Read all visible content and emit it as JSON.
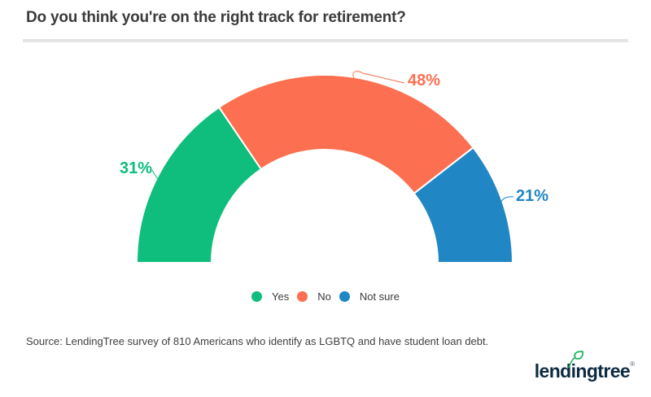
{
  "title": "Do you think you're on the right track for retirement?",
  "source": "Source: LendingTree survey of 810 Americans who identify as LGBTQ and have student loan debt.",
  "logo": {
    "text": "lendingtree",
    "registered": "®"
  },
  "colors": {
    "yes_green": "#0fbe7c",
    "no_orange": "#fc6f50",
    "not_sure_blue": "#2186c4",
    "title_text": "#3b3b3b",
    "divider": "#e5e5e5",
    "logo_navy": "#0d2b40",
    "leaf_green": "#1fb25c"
  },
  "legend": [
    {
      "label": "Yes",
      "color": "#0fbe7c"
    },
    {
      "label": "No",
      "color": "#fc6f50"
    },
    {
      "label": "Not sure",
      "color": "#2186c4"
    }
  ],
  "chart_data": {
    "type": "pie",
    "subtype": "half-donut",
    "title": "Do you think you're on the right track for retirement?",
    "categories": [
      "Yes",
      "No",
      "Not sure"
    ],
    "values": [
      31,
      48,
      21
    ],
    "unit": "%",
    "labels": [
      "31%",
      "48%",
      "21%"
    ],
    "colors": [
      "#0fbe7c",
      "#fc6f50",
      "#2186c4"
    ],
    "start_angle_deg": 180,
    "end_angle_deg": 0,
    "inner_radius_ratio": 0.6,
    "legend_position": "bottom",
    "data_labels": "outside-with-connectors"
  }
}
